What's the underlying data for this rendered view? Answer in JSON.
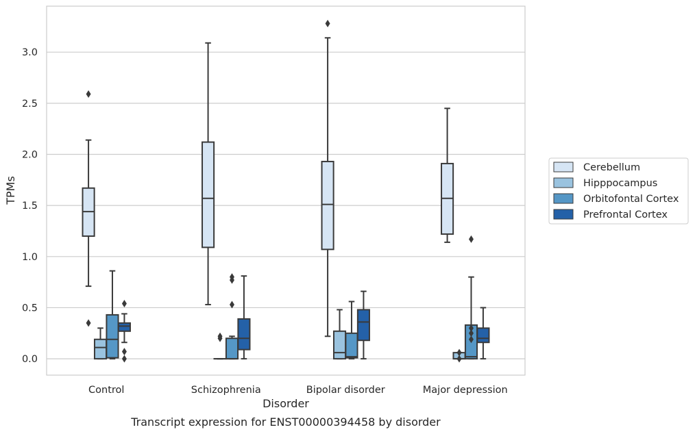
{
  "chart_data": {
    "type": "box",
    "title": "Transcript expression for ENST00000394458 by disorder",
    "xlabel": "Disorder",
    "ylabel": "TPMs",
    "ylim": [
      -0.16,
      3.45
    ],
    "yticks": [
      0.0,
      0.5,
      1.0,
      1.5,
      2.0,
      2.5,
      3.0
    ],
    "ytick_labels": [
      "0.0",
      "0.5",
      "1.0",
      "1.5",
      "2.0",
      "2.5",
      "3.0"
    ],
    "grid": "horizontal",
    "legend_position": "right",
    "categories": [
      "Control",
      "Schizophrenia",
      "Bipolar disorder",
      "Major depression"
    ],
    "series": [
      {
        "name": "Cerebellum",
        "color": "#d6e5f4",
        "boxes": [
          {
            "whislo": 0.71,
            "q1": 1.2,
            "med": 1.44,
            "q3": 1.67,
            "whishi": 2.14,
            "fliers": [
              2.59,
              0.35
            ]
          },
          {
            "whislo": 0.53,
            "q1": 1.09,
            "med": 1.57,
            "q3": 2.12,
            "whishi": 3.09,
            "fliers": []
          },
          {
            "whislo": 0.22,
            "q1": 1.07,
            "med": 1.51,
            "q3": 1.93,
            "whishi": 3.14,
            "fliers": [
              3.28
            ]
          },
          {
            "whislo": 1.14,
            "q1": 1.22,
            "med": 1.57,
            "q3": 1.91,
            "whishi": 2.45,
            "fliers": []
          }
        ]
      },
      {
        "name": "Hipppocampus",
        "color": "#9ac3df",
        "boxes": [
          {
            "whislo": 0.0,
            "q1": 0.0,
            "med": 0.11,
            "q3": 0.19,
            "whishi": 0.3,
            "fliers": []
          },
          {
            "whislo": 0.0,
            "q1": 0.0,
            "med": 0.0,
            "q3": 0.0,
            "whishi": 0.0,
            "fliers": [
              0.22,
              0.2
            ]
          },
          {
            "whislo": 0.0,
            "q1": 0.0,
            "med": 0.06,
            "q3": 0.27,
            "whishi": 0.48,
            "fliers": []
          },
          {
            "whislo": 0.0,
            "q1": 0.0,
            "med": 0.0,
            "q3": 0.06,
            "whishi": 0.06,
            "fliers": [
              0.06,
              0.0
            ]
          }
        ]
      },
      {
        "name": "Orbitofontal Cortex",
        "color": "#5597c6",
        "boxes": [
          {
            "whislo": 0.0,
            "q1": 0.01,
            "med": 0.19,
            "q3": 0.43,
            "whishi": 0.86,
            "fliers": []
          },
          {
            "whislo": 0.0,
            "q1": 0.0,
            "med": 0.0,
            "q3": 0.2,
            "whishi": 0.22,
            "fliers": [
              0.8,
              0.77,
              0.53
            ]
          },
          {
            "whislo": 0.0,
            "q1": 0.01,
            "med": 0.02,
            "q3": 0.25,
            "whishi": 0.56,
            "fliers": []
          },
          {
            "whislo": 0.0,
            "q1": 0.0,
            "med": 0.02,
            "q3": 0.33,
            "whishi": 0.8,
            "fliers": [
              1.17,
              0.3,
              0.25,
              0.19
            ]
          }
        ]
      },
      {
        "name": "Prefrontal Cortex",
        "color": "#2461a8",
        "boxes": [
          {
            "whislo": 0.16,
            "q1": 0.27,
            "med": 0.32,
            "q3": 0.35,
            "whishi": 0.44,
            "fliers": [
              0.54,
              0.07,
              0.0
            ]
          },
          {
            "whislo": 0.0,
            "q1": 0.09,
            "med": 0.2,
            "q3": 0.39,
            "whishi": 0.81,
            "fliers": []
          },
          {
            "whislo": 0.0,
            "q1": 0.18,
            "med": 0.36,
            "q3": 0.48,
            "whishi": 0.66,
            "fliers": []
          },
          {
            "whislo": 0.0,
            "q1": 0.16,
            "med": 0.2,
            "q3": 0.3,
            "whishi": 0.5,
            "fliers": []
          }
        ]
      }
    ]
  }
}
